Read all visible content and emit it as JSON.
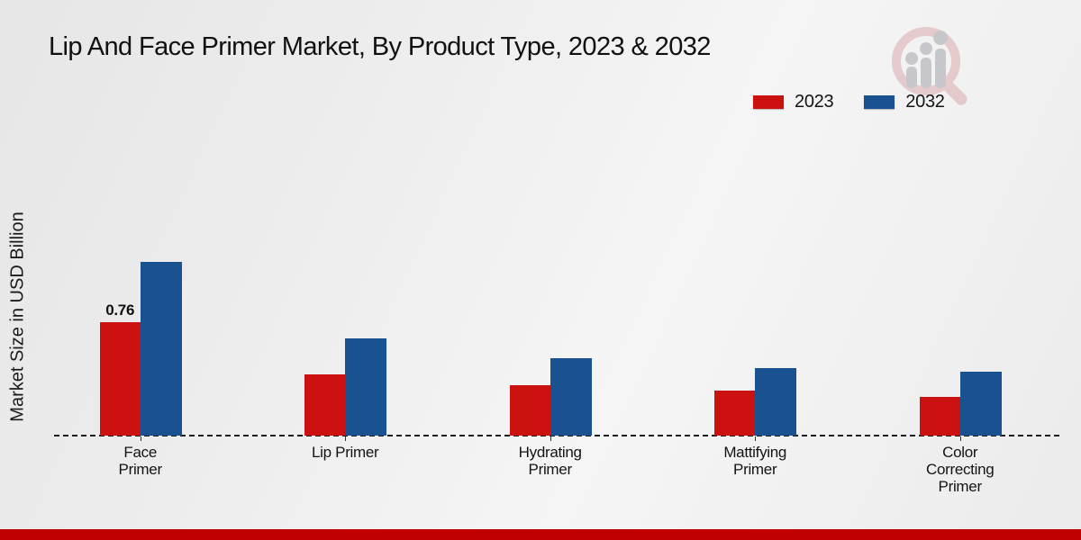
{
  "header": {
    "title": "Lip And Face Primer Market, By Product Type, 2023 & 2032"
  },
  "branding": {
    "logo": "magnifier-bar-chart-logo",
    "logo_ring_color": "#d9aaad",
    "logo_bar_color": "#c7c7cb"
  },
  "footer": {
    "bar_color": "#c00000"
  },
  "chart_data": {
    "type": "bar",
    "title": "Lip And Face Primer Market, By Product Type, 2023 & 2032",
    "xlabel": "",
    "ylabel": "Market Size in USD Billion",
    "categories": [
      "Face\nPrimer",
      "Lip Primer",
      "Hydrating\nPrimer",
      "Mattifying\nPrimer",
      "Color\nCorrecting\nPrimer"
    ],
    "series": [
      {
        "name": "2023",
        "color": "#cc1111",
        "values": [
          0.76,
          0.41,
          0.34,
          0.3,
          0.26
        ],
        "data_labels": [
          "0.76",
          "",
          "",
          "",
          ""
        ]
      },
      {
        "name": "2032",
        "color": "#1a5291",
        "values": [
          1.16,
          0.65,
          0.52,
          0.45,
          0.43
        ],
        "data_labels": [
          "",
          "",
          "",
          "",
          ""
        ]
      }
    ],
    "ylim": [
      0,
      1.3
    ],
    "grid": false,
    "legend_position": "top-right",
    "baseline_style": "dashed"
  }
}
